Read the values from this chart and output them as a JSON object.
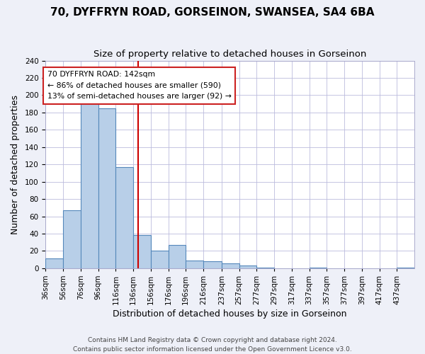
{
  "title": "70, DYFFRYN ROAD, GORSEINON, SWANSEA, SA4 6BA",
  "subtitle": "Size of property relative to detached houses in Gorseinon",
  "xlabel": "Distribution of detached houses by size in Gorseinon",
  "ylabel": "Number of detached properties",
  "bar_edges": [
    36,
    56,
    76,
    96,
    116,
    136,
    156,
    176,
    196,
    216,
    237,
    257,
    277,
    297,
    317,
    337,
    357,
    377,
    397,
    417,
    437,
    457
  ],
  "bar_heights": [
    11,
    67,
    200,
    185,
    117,
    38,
    20,
    27,
    9,
    8,
    6,
    3,
    1,
    0,
    0,
    1,
    0,
    0,
    0,
    0,
    1
  ],
  "bar_color": "#b8cfe8",
  "bar_edge_color": "#5588bb",
  "property_line_x": 142,
  "property_line_color": "#cc0000",
  "ylim": [
    0,
    240
  ],
  "yticks": [
    0,
    20,
    40,
    60,
    80,
    100,
    120,
    140,
    160,
    180,
    200,
    220,
    240
  ],
  "x_tick_labels": [
    "36sqm",
    "56sqm",
    "76sqm",
    "96sqm",
    "116sqm",
    "136sqm",
    "156sqm",
    "176sqm",
    "196sqm",
    "216sqm",
    "237sqm",
    "257sqm",
    "277sqm",
    "297sqm",
    "317sqm",
    "337sqm",
    "357sqm",
    "377sqm",
    "397sqm",
    "417sqm",
    "437sqm"
  ],
  "annotation_line1": "70 DYFFRYN ROAD: 142sqm",
  "annotation_line2": "← 86% of detached houses are smaller (590)",
  "annotation_line3": "13% of semi-detached houses are larger (92) →",
  "footer_line1": "Contains HM Land Registry data © Crown copyright and database right 2024.",
  "footer_line2": "Contains public sector information licensed under the Open Government Licence v3.0.",
  "background_color": "#eef0f8",
  "plot_background_color": "#ffffff",
  "grid_color": "#bbbbdd",
  "title_fontsize": 11,
  "subtitle_fontsize": 9.5,
  "tick_label_fontsize": 7.5,
  "axis_label_fontsize": 9,
  "footer_fontsize": 6.5
}
